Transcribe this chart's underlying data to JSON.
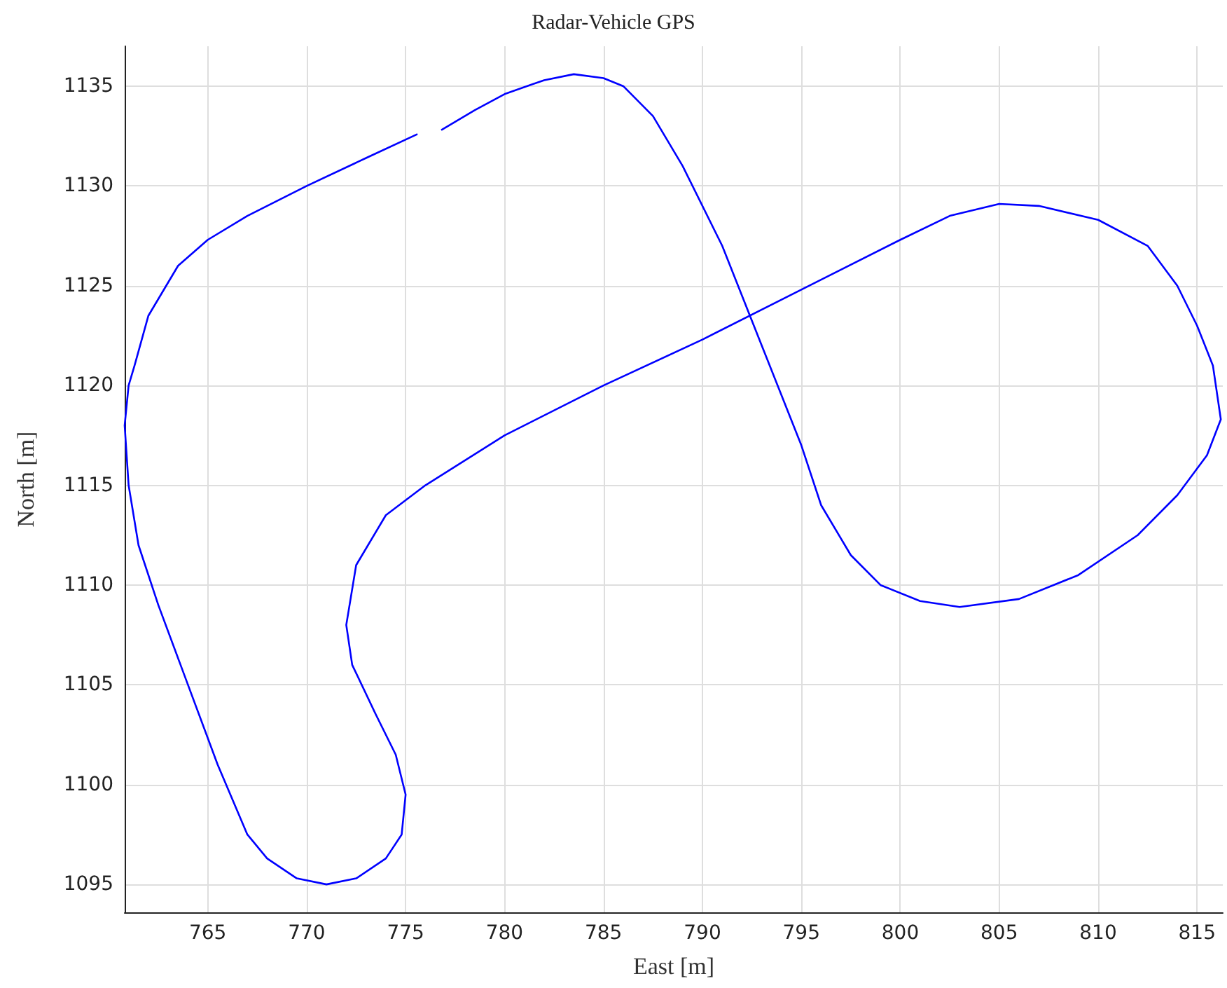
{
  "chart_data": {
    "type": "line",
    "title": "Radar-Vehicle GPS",
    "xlabel": "East [m]",
    "ylabel": "North [m]",
    "x": [
      776.8,
      778.5,
      780,
      782,
      783.5,
      785,
      786,
      787.5,
      789,
      791,
      793,
      795,
      796,
      797.5,
      799,
      801,
      803,
      806,
      809,
      812,
      814,
      815.5,
      816.2,
      815.8,
      815,
      814,
      812.5,
      810,
      807,
      805,
      802.5,
      800,
      796,
      790,
      785,
      780,
      776,
      774,
      772.5,
      772,
      772.3,
      773.5,
      774.5,
      775,
      774.8,
      774,
      772.5,
      771,
      769.5,
      768,
      767,
      765.5,
      764,
      762.5,
      761.5,
      761,
      760.8,
      761,
      761.3,
      762,
      763.5,
      765,
      767,
      770,
      773,
      775.6
    ],
    "series": [
      {
        "color": "#0000ff",
        "values": [
          1132.8,
          1133.8,
          1134.6,
          1135.3,
          1135.6,
          1135.4,
          1135,
          1133.5,
          1131,
          1127,
          1122,
          1117,
          1114,
          1111.5,
          1110,
          1109.2,
          1108.9,
          1109.3,
          1110.5,
          1112.5,
          1114.5,
          1116.5,
          1118.3,
          1121,
          1123,
          1125,
          1127,
          1128.3,
          1129,
          1129.1,
          1128.5,
          1127.3,
          1125.3,
          1122.3,
          1120,
          1117.5,
          1115,
          1113.5,
          1111,
          1108,
          1106,
          1103.5,
          1101.5,
          1099.5,
          1097.5,
          1096.3,
          1095.3,
          1095,
          1095.3,
          1096.3,
          1097.5,
          1101,
          1105,
          1109,
          1112,
          1115,
          1118,
          1120,
          1121,
          1123.5,
          1126,
          1127.3,
          1128.5,
          1130,
          1131.4,
          1132.6
        ]
      }
    ],
    "xlim": [
      760.8,
      816.3
    ],
    "xticks": [
      765,
      770,
      775,
      780,
      785,
      790,
      795,
      800,
      805,
      810,
      815
    ],
    "ylim": [
      1093.6,
      1137
    ],
    "yticks": [
      1095,
      1100,
      1105,
      1110,
      1115,
      1120,
      1125,
      1130,
      1135
    ],
    "grid": true,
    "marker": "none",
    "line_style": "solid"
  }
}
